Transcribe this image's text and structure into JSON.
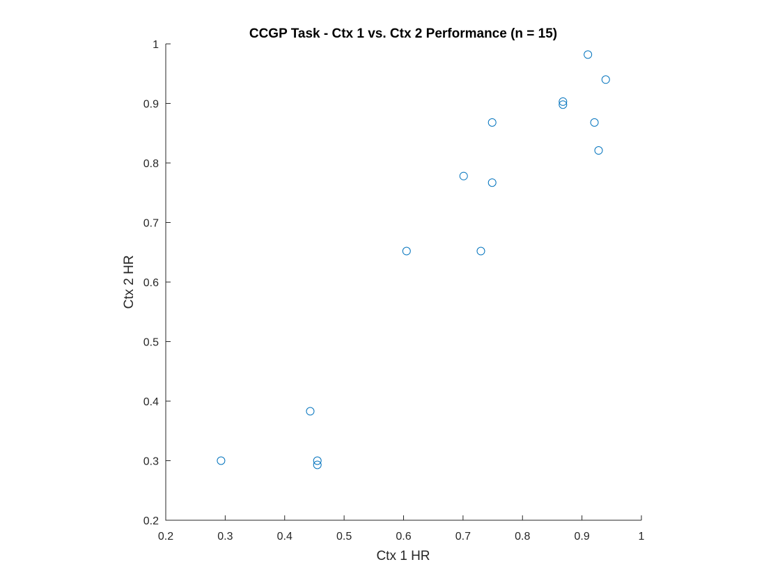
{
  "chart_data": {
    "type": "scatter",
    "title": "CCGP Task - Ctx 1 vs. Ctx 2 Performance (n = 15)",
    "xlabel": "Ctx 1 HR",
    "ylabel": "Ctx 2 HR",
    "xlim": [
      0.2,
      1
    ],
    "ylim": [
      0.2,
      1
    ],
    "xticks": [
      "0.2",
      "0.3",
      "0.4",
      "0.5",
      "0.6",
      "0.7",
      "0.8",
      "0.9",
      "1"
    ],
    "yticks": [
      "0.2",
      "0.3",
      "0.4",
      "0.5",
      "0.6",
      "0.7",
      "0.8",
      "0.9",
      "1"
    ],
    "grid": false,
    "marker": "circle-open",
    "color": "#0072BD",
    "series": [
      {
        "points": [
          {
            "x": 0.293,
            "y": 0.3
          },
          {
            "x": 0.443,
            "y": 0.383
          },
          {
            "x": 0.455,
            "y": 0.3
          },
          {
            "x": 0.455,
            "y": 0.293
          },
          {
            "x": 0.605,
            "y": 0.652
          },
          {
            "x": 0.701,
            "y": 0.778
          },
          {
            "x": 0.73,
            "y": 0.652
          },
          {
            "x": 0.749,
            "y": 0.868
          },
          {
            "x": 0.749,
            "y": 0.767
          },
          {
            "x": 0.868,
            "y": 0.903
          },
          {
            "x": 0.868,
            "y": 0.898
          },
          {
            "x": 0.91,
            "y": 0.982
          },
          {
            "x": 0.921,
            "y": 0.868
          },
          {
            "x": 0.928,
            "y": 0.821
          },
          {
            "x": 0.94,
            "y": 0.94
          }
        ]
      }
    ]
  }
}
